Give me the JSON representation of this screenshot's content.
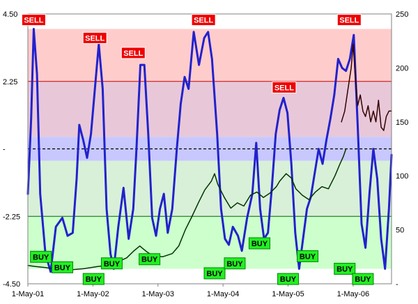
{
  "chart_data": {
    "type": "line",
    "title": "",
    "xlabel": "",
    "ylabel_left": "",
    "ylabel_right": "",
    "left_axis": {
      "min": -4.5,
      "max": 4.5,
      "ticks": [
        {
          "value": 4.5,
          "label": "4.50"
        },
        {
          "value": 2.25,
          "label": "2.25"
        },
        {
          "value": 0,
          "label": "-"
        },
        {
          "value": -2.25,
          "label": "-2.25"
        },
        {
          "value": -4.5,
          "label": "-4.50"
        }
      ]
    },
    "right_axis": {
      "min": 0,
      "max": 250,
      "ticks": [
        {
          "value": 250,
          "label": "250"
        },
        {
          "value": 200,
          "label": "200"
        },
        {
          "value": 150,
          "label": "150"
        },
        {
          "value": 100,
          "label": "100"
        },
        {
          "value": 50,
          "label": "50"
        },
        {
          "value": 0,
          "label": "-"
        }
      ]
    },
    "x_axis": {
      "min": 2001.33,
      "max": 2006.92,
      "ticks": [
        {
          "value": 2001.33,
          "label": "1-May-01"
        },
        {
          "value": 2002.33,
          "label": "1-May-02"
        },
        {
          "value": 2003.33,
          "label": "1-May-03"
        },
        {
          "value": 2004.33,
          "label": "1-May-04"
        },
        {
          "value": 2005.33,
          "label": "1-May-05"
        },
        {
          "value": 2006.33,
          "label": "1-May-06"
        }
      ]
    },
    "bands": [
      {
        "from": 2.25,
        "to": 4.0,
        "color": "#ffcccc"
      },
      {
        "from": 0.4,
        "to": 2.25,
        "color": "#e8c8d8"
      },
      {
        "from": 0,
        "to": 0.4,
        "color": "#c8c8ff"
      },
      {
        "from": -0.4,
        "to": 0,
        "color": "#c8c8ff"
      },
      {
        "from": -2.25,
        "to": -0.4,
        "color": "#d8f0d8"
      },
      {
        "from": -4.0,
        "to": -2.25,
        "color": "#ccffcc"
      }
    ],
    "reference_lines": [
      {
        "value": 2.25,
        "color": "#cc0000",
        "style": "solid"
      },
      {
        "value": 0,
        "color": "#000000",
        "style": "dashed"
      },
      {
        "value": -2.25,
        "color": "#006600",
        "style": "solid"
      }
    ],
    "series": [
      {
        "axis": "left",
        "color": "#2222cc",
        "points": [
          [
            2001.33,
            -1.5
          ],
          [
            2001.38,
            1.0
          ],
          [
            2001.42,
            4.0
          ],
          [
            2001.47,
            2.5
          ],
          [
            2001.52,
            -1.5
          ],
          [
            2001.6,
            -3.5
          ],
          [
            2001.68,
            -4.1
          ],
          [
            2001.76,
            -2.6
          ],
          [
            2001.86,
            -2.3
          ],
          [
            2001.94,
            -2.9
          ],
          [
            2002.02,
            -2.8
          ],
          [
            2002.08,
            -1.0
          ],
          [
            2002.12,
            0.8
          ],
          [
            2002.18,
            0.3
          ],
          [
            2002.24,
            -0.3
          ],
          [
            2002.3,
            0.5
          ],
          [
            2002.36,
            2.0
          ],
          [
            2002.42,
            3.5
          ],
          [
            2002.48,
            2.0
          ],
          [
            2002.54,
            -2.0
          ],
          [
            2002.6,
            -3.5
          ],
          [
            2002.65,
            -4.0
          ],
          [
            2002.72,
            -2.6
          ],
          [
            2002.8,
            -1.3
          ],
          [
            2002.88,
            -3.0
          ],
          [
            2002.95,
            -2.0
          ],
          [
            2003.0,
            0.0
          ],
          [
            2003.06,
            2.8
          ],
          [
            2003.12,
            2.8
          ],
          [
            2003.18,
            0.5
          ],
          [
            2003.24,
            -2.3
          ],
          [
            2003.3,
            -2.9
          ],
          [
            2003.36,
            -2.0
          ],
          [
            2003.42,
            -1.5
          ],
          [
            2003.48,
            -2.8
          ],
          [
            2003.55,
            -2.0
          ],
          [
            2003.62,
            0.0
          ],
          [
            2003.68,
            1.5
          ],
          [
            2003.74,
            2.4
          ],
          [
            2003.8,
            2.0
          ],
          [
            2003.88,
            3.9
          ],
          [
            2003.96,
            2.8
          ],
          [
            2004.04,
            3.7
          ],
          [
            2004.1,
            3.9
          ],
          [
            2004.16,
            3.0
          ],
          [
            2004.24,
            0.5
          ],
          [
            2004.3,
            -2.0
          ],
          [
            2004.36,
            -3.0
          ],
          [
            2004.42,
            -3.2
          ],
          [
            2004.48,
            -2.6
          ],
          [
            2004.56,
            -2.9
          ],
          [
            2004.62,
            -3.4
          ],
          [
            2004.7,
            -2.3
          ],
          [
            2004.78,
            -1.5
          ],
          [
            2004.84,
            0.2
          ],
          [
            2004.9,
            -2.0
          ],
          [
            2004.96,
            -3.0
          ],
          [
            2005.02,
            -2.8
          ],
          [
            2005.08,
            -1.3
          ],
          [
            2005.14,
            0.5
          ],
          [
            2005.2,
            1.3
          ],
          [
            2005.26,
            1.7
          ],
          [
            2005.32,
            1.2
          ],
          [
            2005.38,
            -0.5
          ],
          [
            2005.44,
            -2.8
          ],
          [
            2005.5,
            -4.0
          ],
          [
            2005.56,
            -3.0
          ],
          [
            2005.62,
            -2.0
          ],
          [
            2005.68,
            -1.6
          ],
          [
            2005.74,
            -0.8
          ],
          [
            2005.8,
            0.0
          ],
          [
            2005.86,
            -0.5
          ],
          [
            2005.92,
            0.3
          ],
          [
            2005.98,
            1.0
          ],
          [
            2006.04,
            1.8
          ],
          [
            2006.1,
            3.0
          ],
          [
            2006.16,
            2.7
          ],
          [
            2006.22,
            2.6
          ],
          [
            2006.28,
            3.0
          ],
          [
            2006.34,
            3.8
          ],
          [
            2006.4,
            0.8
          ],
          [
            2006.46,
            -2.5
          ],
          [
            2006.52,
            -3.3
          ],
          [
            2006.58,
            -1.5
          ],
          [
            2006.64,
            0.0
          ],
          [
            2006.7,
            -1.0
          ],
          [
            2006.76,
            -3.0
          ],
          [
            2006.82,
            -4.0
          ],
          [
            2006.88,
            -2.0
          ],
          [
            2006.92,
            -0.2
          ]
        ]
      },
      {
        "axis": "right",
        "color": "#003300",
        "points": [
          [
            2001.33,
            17
          ],
          [
            2001.45,
            16
          ],
          [
            2001.6,
            15
          ],
          [
            2001.8,
            13
          ],
          [
            2002.0,
            13
          ],
          [
            2002.2,
            14
          ],
          [
            2002.4,
            16
          ],
          [
            2002.55,
            17
          ],
          [
            2002.7,
            20
          ],
          [
            2002.85,
            24
          ],
          [
            2002.95,
            30
          ],
          [
            2003.05,
            35
          ],
          [
            2003.15,
            30
          ],
          [
            2003.25,
            26
          ],
          [
            2003.4,
            25
          ],
          [
            2003.55,
            28
          ],
          [
            2003.65,
            35
          ],
          [
            2003.75,
            50
          ],
          [
            2003.85,
            62
          ],
          [
            2003.95,
            75
          ],
          [
            2004.05,
            87
          ],
          [
            2004.15,
            95
          ],
          [
            2004.2,
            102
          ],
          [
            2004.25,
            92
          ],
          [
            2004.35,
            80
          ],
          [
            2004.45,
            70
          ],
          [
            2004.55,
            75
          ],
          [
            2004.65,
            72
          ],
          [
            2004.75,
            82
          ],
          [
            2004.85,
            85
          ],
          [
            2004.95,
            80
          ],
          [
            2005.05,
            84
          ],
          [
            2005.15,
            90
          ],
          [
            2005.2,
            95
          ],
          [
            2005.3,
            102
          ],
          [
            2005.38,
            98
          ],
          [
            2005.45,
            88
          ],
          [
            2005.55,
            82
          ],
          [
            2005.65,
            78
          ],
          [
            2005.75,
            85
          ],
          [
            2005.85,
            90
          ],
          [
            2005.95,
            88
          ],
          [
            2006.05,
            100
          ],
          [
            2006.12,
            110
          ],
          [
            2006.18,
            118
          ],
          [
            2006.22,
            125
          ]
        ]
      },
      {
        "axis": "right",
        "color": "#330000",
        "points": [
          [
            2006.15,
            150
          ],
          [
            2006.2,
            160
          ],
          [
            2006.25,
            180
          ],
          [
            2006.3,
            200
          ],
          [
            2006.33,
            222
          ],
          [
            2006.36,
            195
          ],
          [
            2006.4,
            165
          ],
          [
            2006.44,
            175
          ],
          [
            2006.48,
            160
          ],
          [
            2006.52,
            155
          ],
          [
            2006.56,
            165
          ],
          [
            2006.6,
            150
          ],
          [
            2006.64,
            160
          ],
          [
            2006.68,
            150
          ],
          [
            2006.72,
            170
          ],
          [
            2006.76,
            145
          ],
          [
            2006.8,
            142
          ],
          [
            2006.84,
            155
          ],
          [
            2006.88,
            160
          ],
          [
            2006.92,
            160
          ]
        ]
      }
    ],
    "signals": [
      {
        "label": "SELL",
        "x": 2001.42,
        "y": 4.3,
        "kind": "sell"
      },
      {
        "label": "SELL",
        "x": 2002.36,
        "y": 3.7,
        "kind": "sell"
      },
      {
        "label": "SELL",
        "x": 2002.95,
        "y": 3.2,
        "kind": "sell"
      },
      {
        "label": "SELL",
        "x": 2004.03,
        "y": 4.3,
        "kind": "sell"
      },
      {
        "label": "SELL",
        "x": 2005.27,
        "y": 2.05,
        "kind": "sell"
      },
      {
        "label": "SELL",
        "x": 2006.27,
        "y": 4.3,
        "kind": "sell"
      },
      {
        "label": "BUY",
        "x": 2001.53,
        "y": -3.6,
        "kind": "buy"
      },
      {
        "label": "BUY",
        "x": 2001.86,
        "y": -3.95,
        "kind": "buy"
      },
      {
        "label": "BUY",
        "x": 2002.34,
        "y": -4.34,
        "kind": "buy"
      },
      {
        "label": "BUY",
        "x": 2002.62,
        "y": -3.82,
        "kind": "buy"
      },
      {
        "label": "BUY",
        "x": 2003.2,
        "y": -3.68,
        "kind": "buy"
      },
      {
        "label": "BUY",
        "x": 2004.2,
        "y": -4.15,
        "kind": "buy"
      },
      {
        "label": "BUY",
        "x": 2004.51,
        "y": -3.82,
        "kind": "buy"
      },
      {
        "label": "BUY",
        "x": 2004.89,
        "y": -3.15,
        "kind": "buy"
      },
      {
        "label": "BUY",
        "x": 2005.33,
        "y": -4.34,
        "kind": "buy"
      },
      {
        "label": "BUY",
        "x": 2005.63,
        "y": -3.58,
        "kind": "buy"
      },
      {
        "label": "BUY",
        "x": 2006.2,
        "y": -4.0,
        "kind": "buy"
      },
      {
        "label": "BUY",
        "x": 2006.48,
        "y": -4.34,
        "kind": "buy"
      }
    ]
  }
}
